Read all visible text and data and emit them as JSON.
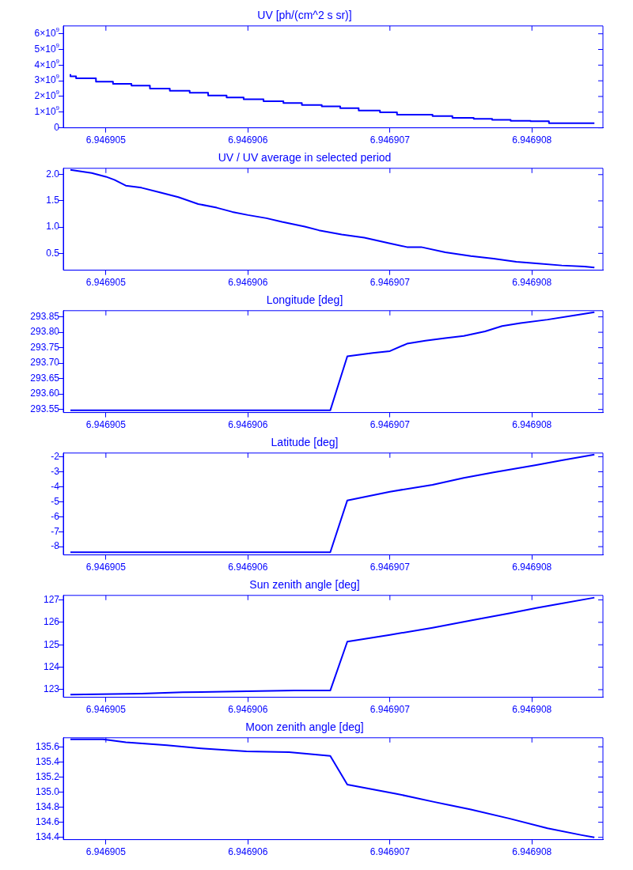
{
  "chart_data": [
    {
      "type": "step",
      "title": "UV [ph/(cm^2 s sr)]",
      "color": "#0000ff",
      "marker": "none",
      "x": [
        6.94690475,
        6.94690479,
        6.94690493,
        6.94690505,
        6.94690518,
        6.94690531,
        6.94690545,
        6.94690559,
        6.94690572,
        6.94690585,
        6.94690597,
        6.94690611,
        6.94690625,
        6.94690638,
        6.94690652,
        6.94690665,
        6.94690678,
        6.94690693,
        6.94690705,
        6.9469073,
        6.94690744,
        6.94690759,
        6.94690772,
        6.94690785,
        6.94690799,
        6.94690812,
        6.94690837,
        6.94690844
      ],
      "values": [
        3430000000.0,
        3280000000.0,
        3160000000.0,
        2950000000.0,
        2800000000.0,
        2690000000.0,
        2500000000.0,
        2360000000.0,
        2240000000.0,
        2060000000.0,
        1940000000.0,
        1820000000.0,
        1700000000.0,
        1580000000.0,
        1460000000.0,
        1370000000.0,
        1250000000.0,
        1100000000.0,
        990000000.0,
        840000000.0,
        750000000.0,
        630000000.0,
        570000000.0,
        510000000.0,
        450000000.0,
        420000000.0,
        300000000.0,
        300000000.0
      ],
      "xlim": [
        6.9469047,
        6.9469085
      ],
      "xticks": [
        6.946905,
        6.946906,
        6.946907,
        6.946908
      ],
      "ylim": [
        0,
        6500000000.0
      ],
      "yticks": [
        0,
        {
          "value": 1000000000.0,
          "label": "1×10$^{9}$"
        },
        {
          "value": 2000000000.0,
          "label": "2×10$^{9}$"
        },
        {
          "value": 3000000000.0,
          "label": "3×10$^{9}$"
        },
        {
          "value": 4000000000.0,
          "label": "4×10$^{9}$"
        },
        {
          "value": 5000000000.0,
          "label": "5×10$^{9}$"
        },
        {
          "value": 6000000000.0,
          "label": "6×10$^{9}$"
        }
      ]
    },
    {
      "type": "line",
      "title": "UV / UV average in selected period",
      "color": "#0000ff",
      "marker": "none",
      "x": [
        6.94690475,
        6.9469049,
        6.946905,
        6.94690506,
        6.94690514,
        6.94690525,
        6.94690538,
        6.94690551,
        6.94690565,
        6.94690578,
        6.94690589,
        6.946906,
        6.94690613,
        6.94690624,
        6.9469064,
        6.9469065,
        6.94690666,
        6.94690682,
        6.946907,
        6.94690712,
        6.94690722,
        6.94690739,
        6.94690757,
        6.94690773,
        6.94690789,
        6.94690803,
        6.94690821,
        6.94690837,
        6.94690844
      ],
      "values": [
        2.09,
        2.03,
        1.96,
        1.9,
        1.79,
        1.75,
        1.66,
        1.57,
        1.44,
        1.37,
        1.29,
        1.23,
        1.17,
        1.1,
        1.01,
        0.94,
        0.86,
        0.8,
        0.69,
        0.62,
        0.62,
        0.52,
        0.45,
        0.4,
        0.34,
        0.31,
        0.27,
        0.25,
        0.23
      ],
      "xlim": [
        6.9469047,
        6.9469085
      ],
      "xticks": [
        6.946905,
        6.946906,
        6.946907,
        6.946908
      ],
      "ylim": [
        0.18,
        2.12
      ],
      "yticks": [
        0.5,
        {
          "value": 1,
          "label": "1.0"
        },
        1.5,
        {
          "value": 2,
          "label": "2.0"
        }
      ]
    },
    {
      "type": "line",
      "title": "Longitude [deg]",
      "color": "#0000ff",
      "marker": "none",
      "x": [
        6.94690475,
        6.94690658,
        6.9469067,
        6.94690688,
        6.946907,
        6.94690712,
        6.94690725,
        6.94690739,
        6.94690752,
        6.94690767,
        6.94690779,
        6.94690792,
        6.94690811,
        6.94690829,
        6.94690844
      ],
      "values": [
        293.547,
        293.547,
        293.722,
        293.733,
        293.739,
        293.763,
        293.773,
        293.781,
        293.788,
        293.803,
        293.82,
        293.83,
        293.841,
        293.854,
        293.865
      ],
      "xlim": [
        6.9469047,
        6.9469085
      ],
      "xticks": [
        6.946905,
        6.946906,
        6.946907,
        6.946908
      ],
      "ylim": [
        293.54,
        293.87
      ],
      "yticks": [
        293.55,
        {
          "value": 293.6,
          "label": "293.60"
        },
        293.65,
        {
          "value": 293.7,
          "label": "293.70"
        },
        293.75,
        {
          "value": 293.8,
          "label": "293.80"
        },
        293.85
      ]
    },
    {
      "type": "line",
      "title": "Latitude [deg]",
      "color": "#0000ff",
      "marker": "none",
      "x": [
        6.94690475,
        6.94690658,
        6.9469067,
        6.946907,
        6.9469073,
        6.94690752,
        6.94690773,
        6.94690803,
        6.94690821,
        6.94690844
      ],
      "values": [
        -8.37,
        -8.37,
        -4.91,
        -4.33,
        -3.87,
        -3.41,
        -3.04,
        -2.55,
        -2.24,
        -1.85
      ],
      "xlim": [
        6.9469047,
        6.9469085
      ],
      "xticks": [
        6.946905,
        6.946906,
        6.946907,
        6.946908
      ],
      "ylim": [
        -8.55,
        -1.75
      ],
      "yticks": [
        -8,
        -7,
        -6,
        -5,
        -4,
        -3,
        -2
      ]
    },
    {
      "type": "line",
      "title": "Sun zenith angle [deg]",
      "color": "#0000ff",
      "marker": "none",
      "x": [
        6.94690475,
        6.94690525,
        6.94690554,
        6.94690591,
        6.94690633,
        6.94690658,
        6.9469067,
        6.946907,
        6.9469073,
        6.94690757,
        6.94690784,
        6.94690803,
        6.94690844
      ],
      "values": [
        122.78,
        122.82,
        122.88,
        122.92,
        122.96,
        122.96,
        125.14,
        125.44,
        125.76,
        126.08,
        126.4,
        126.64,
        127.1
      ],
      "xlim": [
        6.9469047,
        6.9469085
      ],
      "xticks": [
        6.946905,
        6.946906,
        6.946907,
        6.946908
      ],
      "ylim": [
        122.66,
        127.2
      ],
      "yticks": [
        123,
        124,
        125,
        126,
        127
      ]
    },
    {
      "type": "line",
      "title": "Moon zenith angle [deg]",
      "color": "#0000ff",
      "marker": "none",
      "x": [
        6.94690475,
        6.94690498,
        6.94690514,
        6.94690543,
        6.94690567,
        6.94690599,
        6.94690629,
        6.94690658,
        6.9469067,
        6.94690704,
        6.94690731,
        6.94690757,
        6.94690784,
        6.94690811,
        6.94690835,
        6.94690844
      ],
      "values": [
        135.7,
        135.7,
        135.66,
        135.62,
        135.58,
        135.54,
        135.53,
        135.48,
        135.1,
        134.98,
        134.87,
        134.77,
        134.65,
        134.52,
        134.43,
        134.4
      ],
      "xlim": [
        6.9469047,
        6.9469085
      ],
      "xticks": [
        6.946905,
        6.946906,
        6.946907,
        6.946908
      ],
      "ylim": [
        134.37,
        135.72
      ],
      "yticks": [
        134.4,
        134.6,
        134.8,
        {
          "value": 135,
          "label": "135.0"
        },
        135.2,
        135.4,
        135.6
      ]
    }
  ]
}
